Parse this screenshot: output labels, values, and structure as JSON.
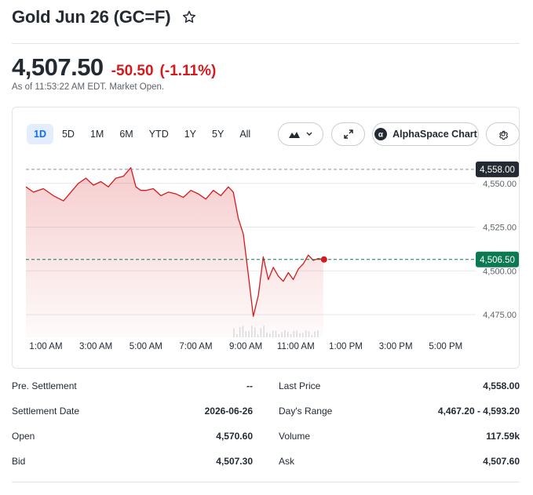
{
  "header": {
    "title": "Gold Jun 26 (GC=F)",
    "price": "4,507.50",
    "change": "-50.50",
    "change_pct": "(-1.11%)",
    "as_of": "As of 11:53:22 AM EDT. Market Open."
  },
  "colors": {
    "negative": "#d6191c",
    "line": "#d6191c",
    "accent": "#0f69ff",
    "last_badge": "#0b7a53",
    "prev_badge": "#232a31"
  },
  "chart_controls": {
    "ranges": [
      "1D",
      "5D",
      "1M",
      "6M",
      "YTD",
      "1Y",
      "5Y",
      "All"
    ],
    "active_range": "1D",
    "chart_type_icon": "mountain-chart-icon",
    "expand_icon": "expand-icon",
    "alphaspace_label": "AlphaSpace Chart",
    "settings_icon": "gear-icon"
  },
  "chart_data": {
    "type": "area",
    "x_ticks": [
      "1:00 AM",
      "3:00 AM",
      "5:00 AM",
      "7:00 AM",
      "9:00 AM",
      "11:00 AM",
      "1:00 PM",
      "3:00 PM",
      "5:00 PM"
    ],
    "y_ticks": [
      "4,550.00",
      "4,525.00",
      "4,500.00",
      "4,475.00"
    ],
    "y_tick_values": [
      4550,
      4525,
      4500,
      4475
    ],
    "ylim": [
      4462,
      4562
    ],
    "x_hours": [
      0.2,
      18.2
    ],
    "previous_close": 4558.0,
    "previous_close_label": "4,558.00",
    "last": 4506.5,
    "last_label": "4,506.50",
    "series": [
      {
        "x": [
          0.2,
          0.5,
          0.9,
          1.3,
          1.7,
          2.0,
          2.3,
          2.6,
          2.9,
          3.2,
          3.5,
          3.8,
          4.1,
          4.4,
          4.6,
          4.8,
          5.0,
          5.3,
          5.6,
          5.9,
          6.2,
          6.5,
          6.8,
          7.1,
          7.4,
          7.7,
          8.0,
          8.3,
          8.5,
          8.7,
          8.9,
          9.1,
          9.3,
          9.5,
          9.7,
          9.9,
          10.1,
          10.3,
          10.5,
          10.7,
          10.9,
          11.1,
          11.3,
          11.5,
          11.7,
          11.9,
          12.1
        ],
        "y": [
          4548,
          4545,
          4547,
          4543,
          4540,
          4545,
          4550,
          4553,
          4549,
          4551,
          4548,
          4553,
          4554,
          4559,
          4548,
          4546,
          4546,
          4547,
          4543,
          4545,
          4544,
          4542,
          4546,
          4544,
          4541,
          4546,
          4543,
          4548,
          4545,
          4530,
          4521,
          4498,
          4474,
          4486,
          4508,
          4495,
          4502,
          4497,
          4494,
          4499,
          4495,
          4501,
          4504,
          4509,
          4506,
          4507,
          4506.5
        ]
      }
    ],
    "volume_note": ""
  },
  "stats": {
    "left": [
      {
        "label": "Pre. Settlement",
        "value": "--"
      },
      {
        "label": "Settlement Date",
        "value": "2026-06-26"
      },
      {
        "label": "Open",
        "value": "4,570.60"
      },
      {
        "label": "Bid",
        "value": "4,507.30"
      }
    ],
    "right": [
      {
        "label": "Last Price",
        "value": "4,558.00"
      },
      {
        "label": "Day's Range",
        "value": "4,467.20 - 4,593.20"
      },
      {
        "label": "Volume",
        "value": "117.59k"
      },
      {
        "label": "Ask",
        "value": "4,507.60"
      }
    ]
  }
}
